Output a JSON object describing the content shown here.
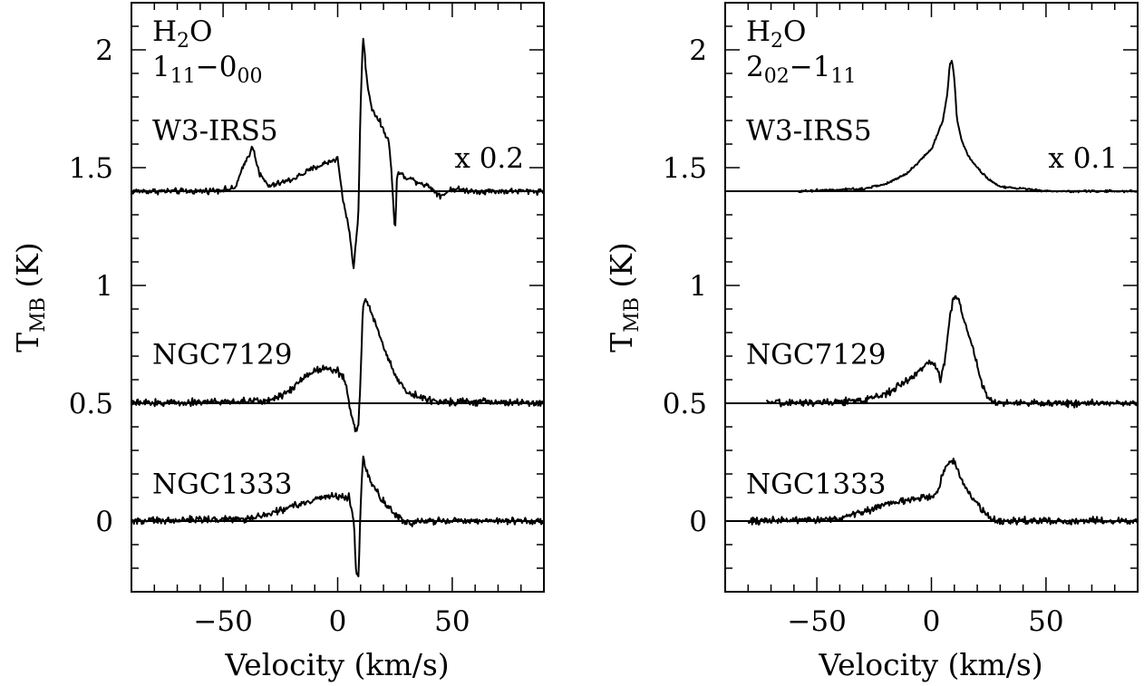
{
  "chart_data": [
    {
      "type": "line",
      "panel": "left",
      "annotations": {
        "molecule": {
          "main": "H",
          "sub": "2",
          "tail": "O"
        },
        "transition": {
          "upper": "1",
          "upper_sub": "11",
          "dash": "−",
          "lower": "0",
          "lower_sub": "00"
        },
        "scale": "x 0.2"
      },
      "xlabel": "Velocity (km/s)",
      "ylabel": {
        "main": "T",
        "sub": "MB",
        "tail": " (K)"
      },
      "xlim": [
        -90,
        90
      ],
      "ylim": [
        -0.3,
        2.2
      ],
      "xticks": [
        -50,
        0,
        50
      ],
      "xtick_labels": [
        "−50",
        "0",
        "50"
      ],
      "yticks": [
        0,
        0.5,
        1,
        1.5,
        2
      ],
      "ytick_labels": [
        "0",
        "0.5",
        "1",
        "1.5",
        "2"
      ],
      "xtick_minor_step": 10,
      "ytick_minor_step": 0.1,
      "grid": false,
      "series": [
        {
          "name": "W3-IRS5",
          "baseline": 1.4,
          "x": [
            -90,
            -60,
            -45,
            -40,
            -37,
            -34,
            -30,
            -20,
            -10,
            0,
            2,
            5,
            7,
            9,
            10,
            11,
            13,
            15,
            18,
            22,
            23,
            24,
            25,
            26,
            30,
            40,
            45,
            50,
            60,
            90
          ],
          "y": [
            1.4,
            1.4,
            1.41,
            1.53,
            1.59,
            1.47,
            1.42,
            1.45,
            1.5,
            1.54,
            1.38,
            1.24,
            1.07,
            1.3,
            1.75,
            2.06,
            1.85,
            1.75,
            1.7,
            1.62,
            1.55,
            1.4,
            1.22,
            1.48,
            1.46,
            1.42,
            1.38,
            1.41,
            1.4,
            1.4
          ],
          "noise": 0.01
        },
        {
          "name": "NGC7129",
          "baseline": 0.5,
          "x": [
            -90,
            -30,
            -20,
            -15,
            -10,
            -5,
            0,
            3,
            6,
            8,
            9,
            10,
            11,
            12,
            15,
            20,
            25,
            30,
            40,
            90
          ],
          "y": [
            0.5,
            0.51,
            0.56,
            0.61,
            0.64,
            0.65,
            0.64,
            0.6,
            0.45,
            0.38,
            0.4,
            0.6,
            0.9,
            0.95,
            0.88,
            0.74,
            0.62,
            0.55,
            0.51,
            0.5
          ],
          "noise": 0.012
        },
        {
          "name": "NGC1333",
          "baseline": 0.0,
          "x": [
            -90,
            -40,
            -30,
            -20,
            -10,
            0,
            5,
            7,
            8,
            9,
            10,
            11,
            12,
            15,
            20,
            25,
            30,
            35,
            90
          ],
          "y": [
            0.0,
            0.01,
            0.03,
            0.06,
            0.09,
            0.11,
            0.1,
            0.0,
            -0.2,
            -0.25,
            0.05,
            0.28,
            0.22,
            0.16,
            0.08,
            0.03,
            -0.01,
            0.0,
            0.0
          ],
          "noise": 0.012
        }
      ]
    },
    {
      "type": "line",
      "panel": "right",
      "annotations": {
        "molecule": {
          "main": "H",
          "sub": "2",
          "tail": "O"
        },
        "transition": {
          "upper": "2",
          "upper_sub": "02",
          "dash": "−",
          "lower": "1",
          "lower_sub": "11"
        },
        "scale": "x 0.1"
      },
      "xlabel": "Velocity (km/s)",
      "ylabel": {
        "main": "T",
        "sub": "MB",
        "tail": " (K)"
      },
      "xlim": [
        -90,
        90
      ],
      "ylim": [
        -0.3,
        2.2
      ],
      "xticks": [
        -50,
        0,
        50
      ],
      "xtick_labels": [
        "−50",
        "0",
        "50"
      ],
      "yticks": [
        0,
        0.5,
        1,
        1.5,
        2
      ],
      "ytick_labels": [
        "0",
        "0.5",
        "1",
        "1.5",
        "2"
      ],
      "xtick_minor_step": 10,
      "ytick_minor_step": 0.1,
      "grid": false,
      "series": [
        {
          "name": "W3-IRS5",
          "baseline": 1.4,
          "x": [
            -58,
            -30,
            -20,
            -10,
            -5,
            0,
            3,
            5,
            7,
            8,
            9,
            10,
            11,
            13,
            16,
            20,
            25,
            30,
            40,
            50,
            90
          ],
          "y": [
            1.4,
            1.41,
            1.43,
            1.48,
            1.53,
            1.58,
            1.65,
            1.7,
            1.82,
            1.94,
            1.95,
            1.88,
            1.72,
            1.62,
            1.55,
            1.5,
            1.45,
            1.42,
            1.41,
            1.4,
            1.4
          ],
          "noise": 0.004
        },
        {
          "name": "NGC7129",
          "baseline": 0.5,
          "x": [
            -72,
            -30,
            -20,
            -10,
            -5,
            0,
            3,
            4,
            6,
            8,
            10,
            12,
            14,
            18,
            22,
            25,
            30,
            90
          ],
          "y": [
            0.5,
            0.51,
            0.54,
            0.6,
            0.64,
            0.68,
            0.64,
            0.58,
            0.7,
            0.86,
            0.96,
            0.94,
            0.86,
            0.74,
            0.58,
            0.52,
            0.5,
            0.5
          ],
          "noise": 0.012
        },
        {
          "name": "NGC1333",
          "baseline": 0.0,
          "x": [
            -80,
            -40,
            -30,
            -20,
            -10,
            0,
            3,
            5,
            8,
            10,
            12,
            15,
            18,
            22,
            25,
            30,
            90
          ],
          "y": [
            0.0,
            0.01,
            0.04,
            0.07,
            0.09,
            0.1,
            0.13,
            0.2,
            0.26,
            0.25,
            0.2,
            0.14,
            0.1,
            0.05,
            0.02,
            0.0,
            0.0
          ],
          "noise": 0.012
        }
      ]
    }
  ]
}
